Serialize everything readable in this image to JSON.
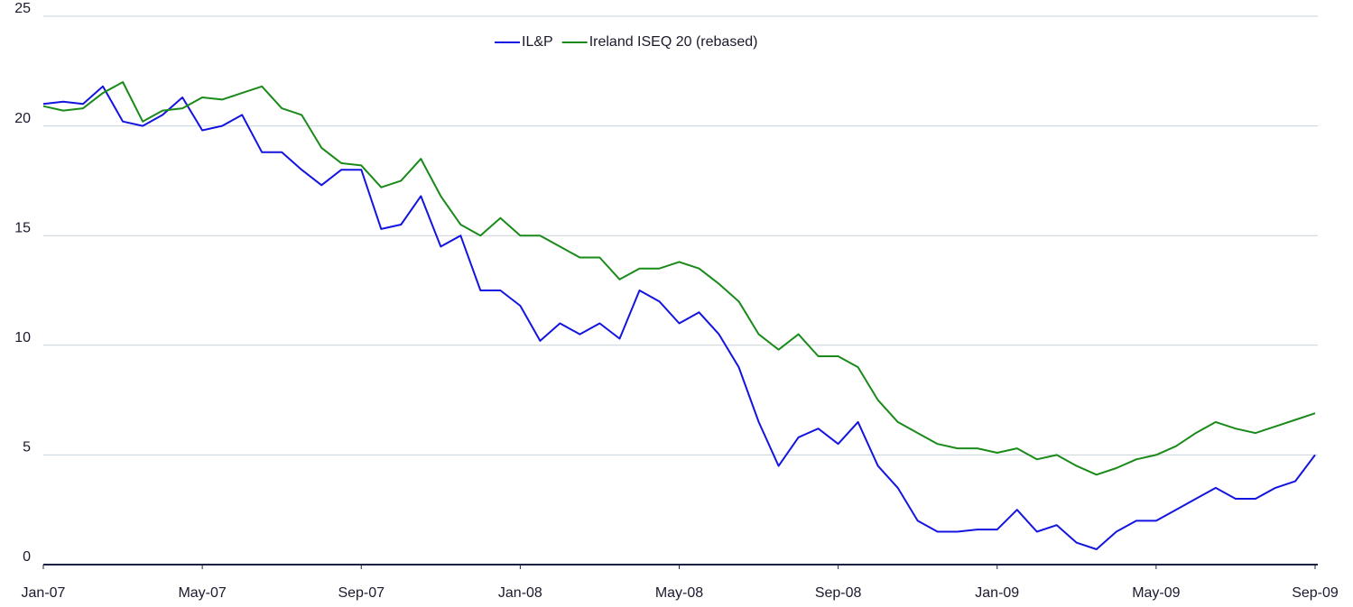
{
  "chart_data": {
    "type": "line",
    "x": [
      0,
      0.5,
      1,
      1.5,
      2,
      2.5,
      3,
      3.5,
      4,
      4.5,
      5,
      5.5,
      6,
      6.5,
      7,
      7.5,
      8,
      8.5,
      9,
      9.5,
      10,
      10.5,
      11,
      11.5,
      12,
      12.5,
      13,
      13.5,
      14,
      14.5,
      15,
      15.5,
      16,
      16.5,
      17,
      17.5,
      18,
      18.5,
      19,
      19.5,
      20,
      20.5,
      21,
      21.5,
      22,
      22.5,
      23,
      23.5,
      24,
      24.5,
      25,
      25.5,
      26,
      26.5,
      27,
      27.5,
      28,
      28.5,
      29,
      29.5,
      30,
      30.5,
      31,
      31.5,
      32
    ],
    "series": [
      {
        "name": "IL&P",
        "color": "#1414e0",
        "values": [
          21.0,
          21.1,
          21.0,
          21.8,
          20.2,
          20.0,
          20.5,
          21.3,
          19.8,
          20.0,
          20.5,
          18.8,
          18.8,
          18.0,
          17.3,
          18.0,
          18.0,
          15.3,
          15.5,
          16.8,
          14.5,
          15.0,
          12.5,
          12.5,
          11.8,
          10.2,
          11.0,
          10.5,
          11.0,
          10.3,
          12.5,
          12.0,
          11.0,
          11.5,
          10.5,
          9.0,
          6.5,
          4.5,
          5.8,
          6.2,
          5.5,
          6.5,
          4.5,
          3.5,
          2.0,
          1.5,
          1.5,
          1.6,
          1.6,
          2.5,
          1.5,
          1.8,
          1.0,
          0.7,
          1.5,
          2.0,
          2.0,
          2.5,
          3.0,
          3.5,
          3.0,
          3.0,
          3.5,
          3.8,
          5.0
        ]
      },
      {
        "name": "Ireland ISEQ 20 (rebased)",
        "color": "#1a8a1a",
        "values": [
          20.9,
          20.7,
          20.8,
          21.5,
          22.0,
          20.2,
          20.7,
          20.8,
          21.3,
          21.2,
          21.5,
          21.8,
          20.8,
          20.5,
          19.0,
          18.3,
          18.2,
          17.2,
          17.5,
          18.5,
          16.8,
          15.5,
          15.0,
          15.8,
          15.0,
          15.0,
          14.5,
          14.0,
          14.0,
          13.0,
          13.5,
          13.5,
          13.8,
          13.5,
          12.8,
          12.0,
          10.5,
          9.8,
          10.5,
          9.5,
          9.5,
          9.0,
          7.5,
          6.5,
          6.0,
          5.5,
          5.3,
          5.3,
          5.1,
          5.3,
          4.8,
          5.0,
          4.5,
          4.1,
          4.4,
          4.8,
          5.0,
          5.4,
          6.0,
          6.5,
          6.2,
          6.0,
          6.3,
          6.6,
          6.9
        ]
      }
    ],
    "xlim": [
      0,
      32
    ],
    "xticks": [
      {
        "value": 0,
        "label": "Jan-07"
      },
      {
        "value": 4,
        "label": "May-07"
      },
      {
        "value": 8,
        "label": "Sep-07"
      },
      {
        "value": 12,
        "label": "Jan-08"
      },
      {
        "value": 16,
        "label": "May-08"
      },
      {
        "value": 20,
        "label": "Sep-08"
      },
      {
        "value": 24,
        "label": "Jan-09"
      },
      {
        "value": 28,
        "label": "May-09"
      },
      {
        "value": 32,
        "label": "Sep-09"
      }
    ],
    "ylim": [
      0,
      25
    ],
    "yticks": [
      0,
      5,
      10,
      15,
      20,
      25
    ],
    "grid": true,
    "legend": "top"
  }
}
